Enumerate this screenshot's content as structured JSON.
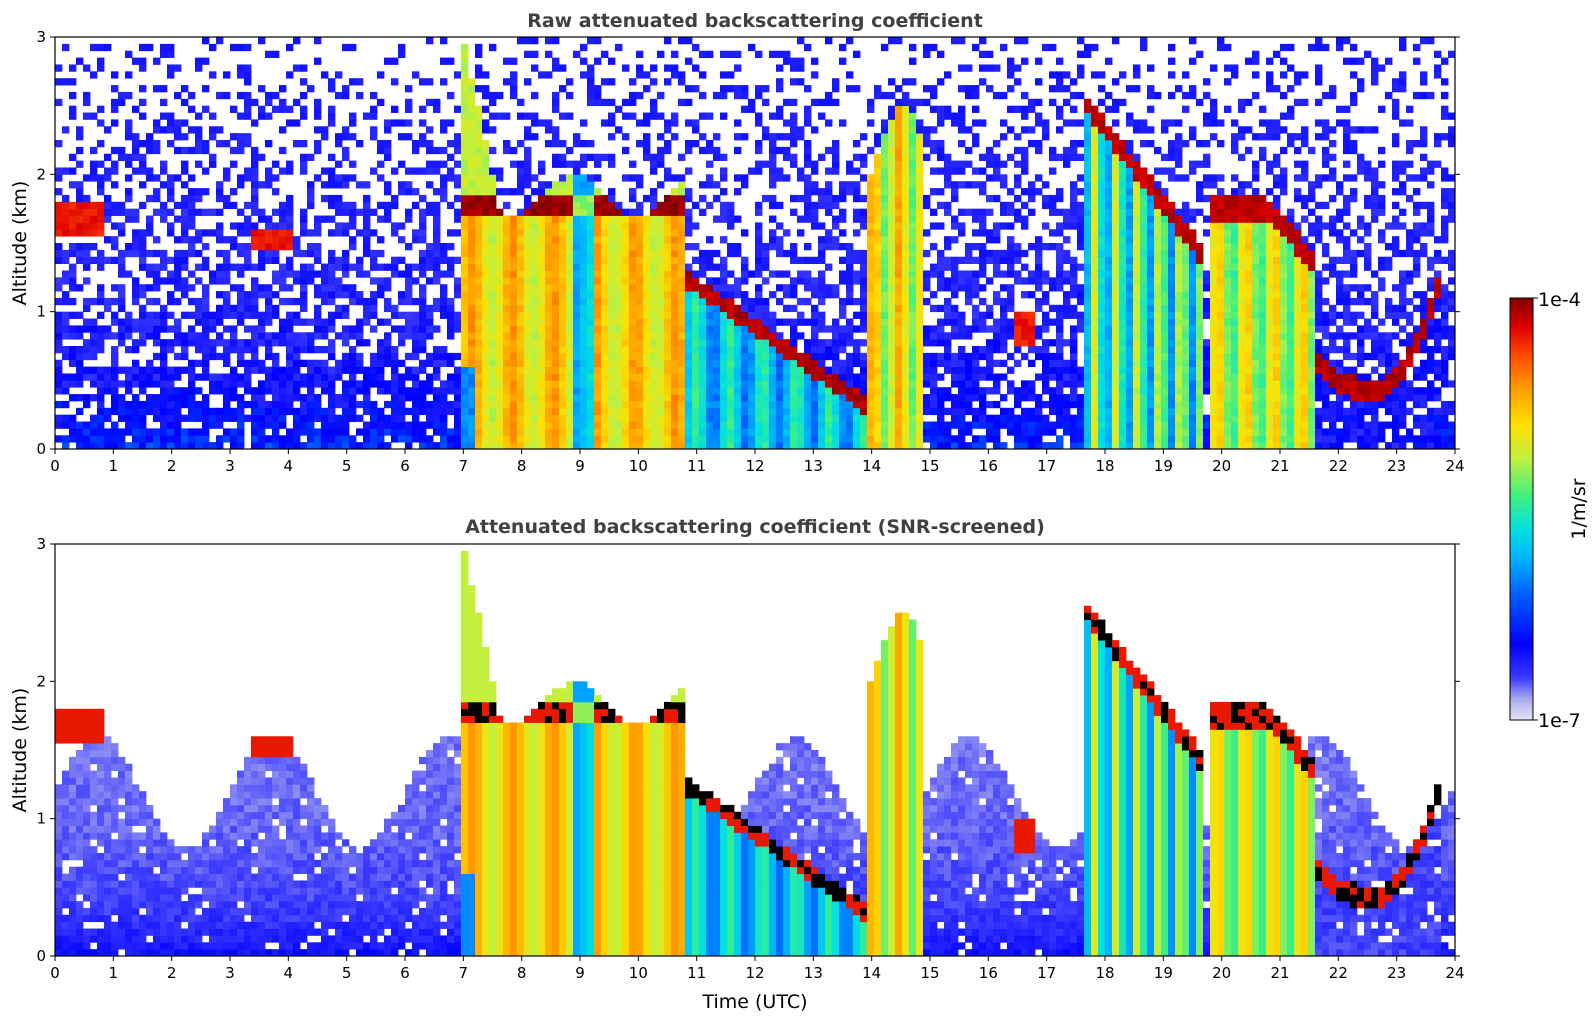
{
  "chart_data": [
    {
      "type": "heatmap",
      "title": "Raw attenuated backscattering coefficient",
      "xlabel": "",
      "ylabel": "Altitude (km)",
      "x_ticks": [
        "0",
        "1",
        "2",
        "3",
        "4",
        "5",
        "6",
        "7",
        "8",
        "9",
        "10",
        "11",
        "12",
        "13",
        "14",
        "15",
        "16",
        "17",
        "18",
        "19",
        "20",
        "21",
        "22",
        "23",
        "24"
      ],
      "y_ticks": [
        "0",
        "1",
        "2",
        "3"
      ],
      "xlim": [
        0,
        24
      ],
      "ylim": [
        0,
        3
      ],
      "x_unit": "hours UTC",
      "y_unit": "km",
      "screening": "none (raw, noisy)",
      "features": [
        {
          "t_start": 0.0,
          "t_end": 0.85,
          "alt_base": 1.55,
          "alt_top": 1.75,
          "kind": "cloud layer"
        },
        {
          "t_start": 3.4,
          "t_end": 4.1,
          "alt_base": 1.45,
          "alt_top": 1.6,
          "kind": "cloud layer"
        },
        {
          "t_start": 7.0,
          "t_end": 10.8,
          "alt_base": 0.0,
          "alt_top": 2.0,
          "kind": "precipitation / thick cloud"
        },
        {
          "t_start": 10.8,
          "t_end": 13.8,
          "alt_base": 0.3,
          "alt_top": 1.3,
          "kind": "descending cloud base"
        },
        {
          "t_start": 13.9,
          "t_end": 14.9,
          "alt_base": 0.0,
          "alt_top": 2.5,
          "kind": "precipitation"
        },
        {
          "t_start": 16.5,
          "t_end": 16.8,
          "alt_base": 0.7,
          "alt_top": 1.0,
          "kind": "cloud patch"
        },
        {
          "t_start": 17.7,
          "t_end": 19.7,
          "alt_base": 0.0,
          "alt_top": 2.5,
          "kind": "precipitation / cloud"
        },
        {
          "t_start": 19.8,
          "t_end": 21.6,
          "alt_base": 0.0,
          "alt_top": 2.2,
          "kind": "precipitation / cloud"
        },
        {
          "t_start": 21.6,
          "t_end": 23.8,
          "alt_base": 0.3,
          "alt_top": 1.6,
          "kind": "cloud base layer"
        }
      ]
    },
    {
      "type": "heatmap",
      "title": "Attenuated backscattering coefficient (SNR-screened)",
      "xlabel": "Time (UTC)",
      "ylabel": "Altitude (km)",
      "x_ticks": [
        "0",
        "1",
        "2",
        "3",
        "4",
        "5",
        "6",
        "7",
        "8",
        "9",
        "10",
        "11",
        "12",
        "13",
        "14",
        "15",
        "16",
        "17",
        "18",
        "19",
        "20",
        "21",
        "22",
        "23",
        "24"
      ],
      "y_ticks": [
        "0",
        "1",
        "2",
        "3"
      ],
      "xlim": [
        0,
        24
      ],
      "ylim": [
        0,
        3
      ],
      "x_unit": "hours UTC",
      "y_unit": "km",
      "screening": "SNR-screened (noise removed)"
    }
  ],
  "colorbar": {
    "label": "1/m/sr",
    "max_label": "1e-4",
    "min_label": "1e-7",
    "colormap": "jet-like with light lavender low end",
    "colors": [
      "#e4e4f6",
      "#a8a8ee",
      "#3a3aff",
      "#0000ff",
      "#0060ff",
      "#00b0ff",
      "#00e0e0",
      "#40f080",
      "#c0f040",
      "#ffe000",
      "#ffa000",
      "#ff5000",
      "#e00000",
      "#800000"
    ]
  }
}
